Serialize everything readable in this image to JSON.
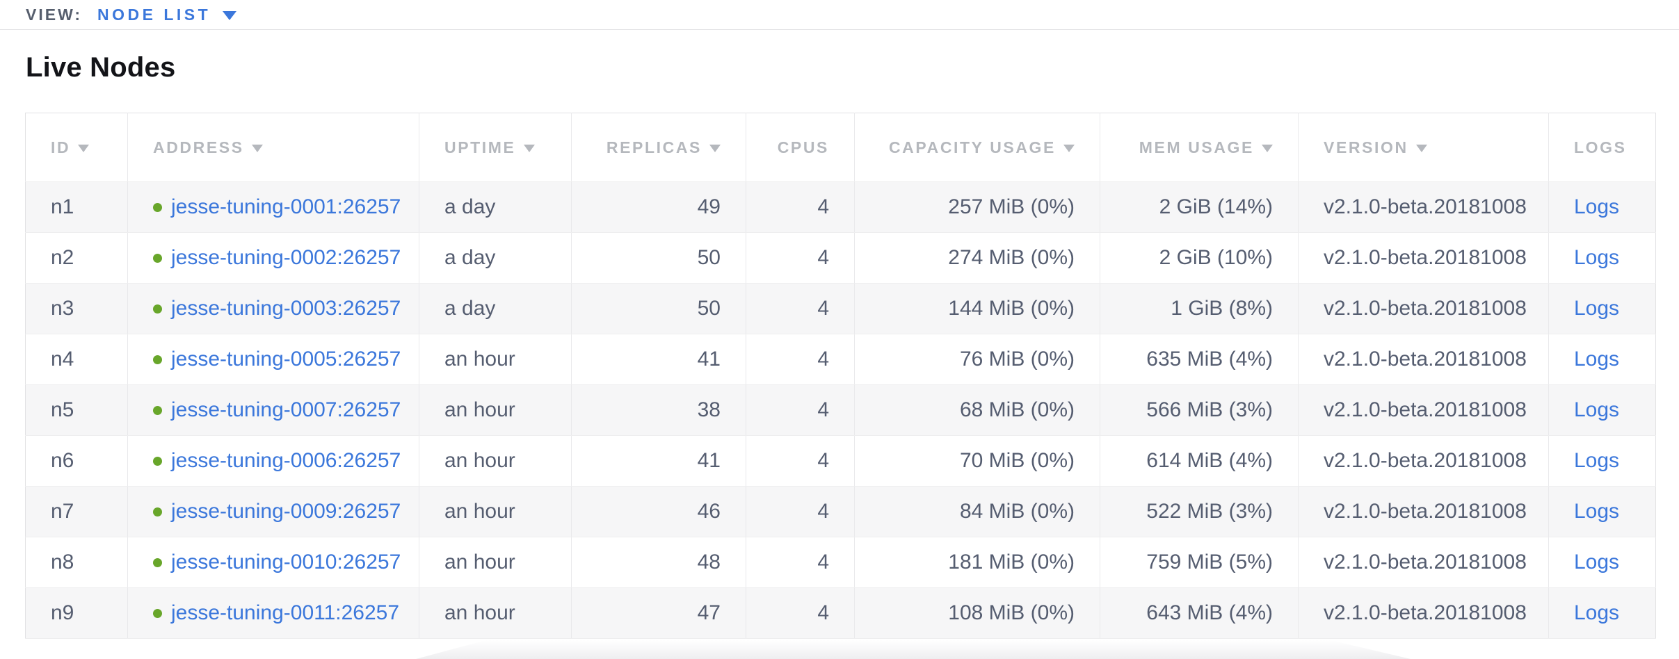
{
  "view_bar": {
    "label": "VIEW:",
    "selected": "NODE LIST"
  },
  "page": {
    "title": "Live Nodes"
  },
  "table": {
    "columns": [
      {
        "key": "id",
        "label": "ID",
        "sortable": true,
        "align": "left"
      },
      {
        "key": "address",
        "label": "ADDRESS",
        "sortable": true,
        "align": "left"
      },
      {
        "key": "uptime",
        "label": "UPTIME",
        "sortable": true,
        "align": "left"
      },
      {
        "key": "replicas",
        "label": "REPLICAS",
        "sortable": true,
        "align": "right"
      },
      {
        "key": "cpus",
        "label": "CPUS",
        "sortable": false,
        "align": "right"
      },
      {
        "key": "capacity",
        "label": "CAPACITY USAGE",
        "sortable": true,
        "align": "right"
      },
      {
        "key": "mem",
        "label": "MEM USAGE",
        "sortable": true,
        "align": "right"
      },
      {
        "key": "version",
        "label": "VERSION",
        "sortable": true,
        "align": "left"
      },
      {
        "key": "logs",
        "label": "LOGS",
        "sortable": false,
        "align": "left"
      }
    ],
    "rows": [
      {
        "id": "n1",
        "address": "jesse-tuning-0001:26257",
        "status": "healthy",
        "uptime": "a day",
        "replicas": "49",
        "cpus": "4",
        "capacity": "257 MiB (0%)",
        "mem": "2 GiB (14%)",
        "version": "v2.1.0-beta.20181008",
        "logs": "Logs"
      },
      {
        "id": "n2",
        "address": "jesse-tuning-0002:26257",
        "status": "healthy",
        "uptime": "a day",
        "replicas": "50",
        "cpus": "4",
        "capacity": "274 MiB (0%)",
        "mem": "2 GiB (10%)",
        "version": "v2.1.0-beta.20181008",
        "logs": "Logs"
      },
      {
        "id": "n3",
        "address": "jesse-tuning-0003:26257",
        "status": "healthy",
        "uptime": "a day",
        "replicas": "50",
        "cpus": "4",
        "capacity": "144 MiB (0%)",
        "mem": "1 GiB (8%)",
        "version": "v2.1.0-beta.20181008",
        "logs": "Logs"
      },
      {
        "id": "n4",
        "address": "jesse-tuning-0005:26257",
        "status": "healthy",
        "uptime": "an hour",
        "replicas": "41",
        "cpus": "4",
        "capacity": "76 MiB (0%)",
        "mem": "635 MiB (4%)",
        "version": "v2.1.0-beta.20181008",
        "logs": "Logs"
      },
      {
        "id": "n5",
        "address": "jesse-tuning-0007:26257",
        "status": "healthy",
        "uptime": "an hour",
        "replicas": "38",
        "cpus": "4",
        "capacity": "68 MiB (0%)",
        "mem": "566 MiB (3%)",
        "version": "v2.1.0-beta.20181008",
        "logs": "Logs"
      },
      {
        "id": "n6",
        "address": "jesse-tuning-0006:26257",
        "status": "healthy",
        "uptime": "an hour",
        "replicas": "41",
        "cpus": "4",
        "capacity": "70 MiB (0%)",
        "mem": "614 MiB (4%)",
        "version": "v2.1.0-beta.20181008",
        "logs": "Logs"
      },
      {
        "id": "n7",
        "address": "jesse-tuning-0009:26257",
        "status": "healthy",
        "uptime": "an hour",
        "replicas": "46",
        "cpus": "4",
        "capacity": "84 MiB (0%)",
        "mem": "522 MiB (3%)",
        "version": "v2.1.0-beta.20181008",
        "logs": "Logs"
      },
      {
        "id": "n8",
        "address": "jesse-tuning-0010:26257",
        "status": "healthy",
        "uptime": "an hour",
        "replicas": "48",
        "cpus": "4",
        "capacity": "181 MiB (0%)",
        "mem": "759 MiB (5%)",
        "version": "v2.1.0-beta.20181008",
        "logs": "Logs"
      },
      {
        "id": "n9",
        "address": "jesse-tuning-0011:26257",
        "status": "healthy",
        "uptime": "an hour",
        "replicas": "47",
        "cpus": "4",
        "capacity": "108 MiB (0%)",
        "mem": "643 MiB (4%)",
        "version": "v2.1.0-beta.20181008",
        "logs": "Logs"
      }
    ]
  },
  "colors": {
    "link_blue": "#3b77db",
    "healthy_green": "#68a62a",
    "header_gray": "#b5b8bd",
    "cell_text": "#555d70",
    "heading_text": "#131418",
    "view_label_gray": "#565e6d",
    "row_stripe": "#f6f6f7"
  }
}
